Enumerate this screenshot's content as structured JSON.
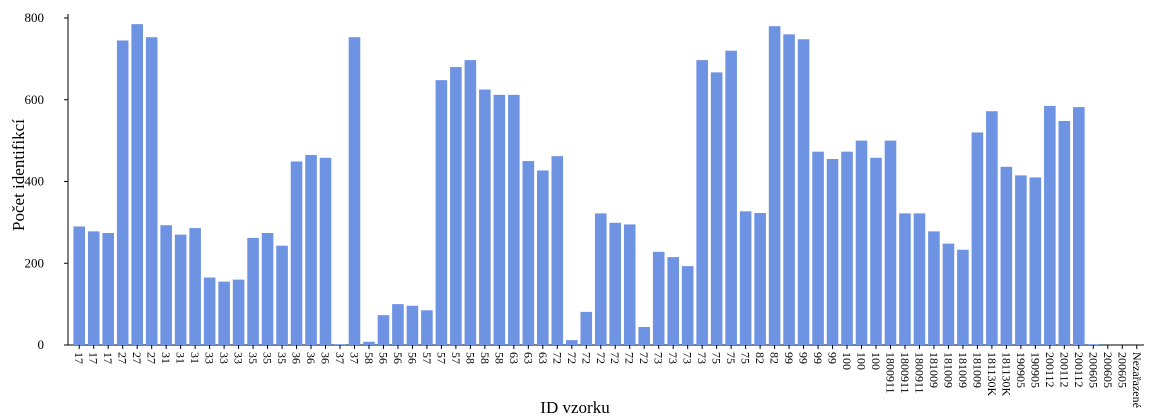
{
  "chart_data": {
    "type": "bar",
    "title": "",
    "xlabel": "ID vzorku",
    "ylabel": "Počet identifikcí",
    "ylim": [
      0,
      800
    ],
    "yticks": [
      0,
      200,
      400,
      600,
      800
    ],
    "grid": false,
    "bar_color": "#6f93e3",
    "categories": [
      "17",
      "17",
      "17",
      "27",
      "27",
      "27",
      "31",
      "31",
      "31",
      "33",
      "33",
      "33",
      "35",
      "35",
      "35",
      "36",
      "36",
      "36",
      "37",
      "37",
      "58",
      "56",
      "56",
      "56",
      "57",
      "57",
      "57",
      "58",
      "58",
      "58",
      "63",
      "63",
      "63",
      "72",
      "72",
      "72",
      "72",
      "72",
      "72",
      "72",
      "73",
      "73",
      "73",
      "73",
      "75",
      "75",
      "75",
      "82",
      "82",
      "99",
      "99",
      "99",
      "99",
      "100",
      "100",
      "100",
      "1800911",
      "1800911",
      "1800911",
      "181009",
      "181009",
      "181009",
      "181009",
      "181130K",
      "181130K",
      "190905",
      "190905",
      "200112",
      "200112",
      "200112",
      "200605",
      "200605",
      "200605",
      "Nezařazené"
    ],
    "values": [
      290,
      278,
      274,
      745,
      785,
      753,
      293,
      270,
      286,
      165,
      155,
      160,
      262,
      274,
      243,
      449,
      465,
      458,
      2,
      753,
      8,
      73,
      100,
      96,
      85,
      648,
      680,
      697,
      625,
      612,
      612,
      450,
      427,
      462,
      12,
      81,
      322,
      299,
      295,
      44,
      228,
      215,
      193,
      697,
      667,
      720,
      327,
      323,
      780,
      760,
      748,
      473,
      455,
      473,
      500,
      458,
      500,
      322,
      322,
      278,
      248,
      233,
      520,
      572,
      436,
      415,
      410,
      585,
      548,
      582,
      2,
      0,
      0,
      0
    ]
  }
}
